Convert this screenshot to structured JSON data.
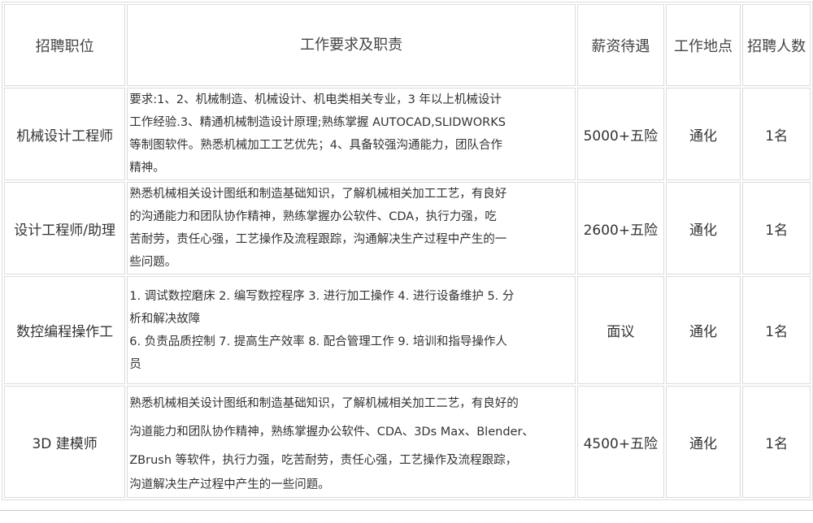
{
  "headers": [
    "招聘职位",
    "工作要求及职责",
    "薪资待遇",
    "工作地点",
    "招聘人数"
  ],
  "rows": [
    {
      "position": "机械设计工程师",
      "requirements": [
        "要求:1、2、机械制造、机械设计、机电类相关专业，3 年以上机械设计",
        "工作经验.3、精通机械制造设计原理;熟练掌握 AUTOCAD,SLIDWORKS",
        "等制图软件。熟悉机械加工工艺优先；4、具备较强沟通能力，团队合作",
        "精神。"
      ],
      "salary": "5000+五险",
      "location": "通化",
      "count": "1名"
    },
    {
      "position": "设计工程师/助理",
      "requirements": [
        "熟悉机械相关设计图纸和制造基础知识，了解机械相关加工工艺，有良好",
        "的沟通能力和团队协作精神，熟练掌握办公软件、CDA，执行力强，吃",
        "苦耐劳，责任心强，工艺操作及流程跟踪，沟通解决生产过程中产生的一",
        "些问题。"
      ],
      "salary": "2600+五险",
      "location": "通化",
      "count": "1名"
    },
    {
      "position": "数控编程操作工",
      "requirements": [
        "1. 调试数控磨床 2. 编写数控程序 3. 进行加工操作 4. 进行设备维护 5. 分",
        "析和解决故障",
        "6. 负责品质控制 7. 提高生产效率 8. 配合管理工作 9. 培训和指导操作人",
        "员"
      ],
      "salary": "面议",
      "location": "通化",
      "count": "1名"
    },
    {
      "position": "3D 建模师",
      "requirements": [
        "熟悉机械相关设计图纸和制造基础知识，了解机械相关加工二艺，有良好的",
        "沟道能力和团队协作精神，熟练掌握办公软件、CDA、3Ds Max、Blender、",
        "ZBrush 等软件，执行力强，吃苦耐劳，责任心强，工艺操作及流程跟踪，",
        "沟道解决生产过程中产生的一些问题。"
      ],
      "salary": "4500+五险",
      "location": "通化",
      "count": "1名"
    }
  ]
}
